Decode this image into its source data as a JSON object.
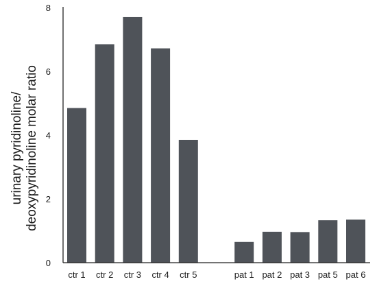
{
  "chart_data": {
    "type": "bar",
    "title": "",
    "xlabel": "",
    "ylabel_lines": [
      "urinary pyridinoline/",
      "deoxypyridinoline molar ratio"
    ],
    "ylim": [
      0,
      8
    ],
    "yticks": [
      0,
      2,
      4,
      6,
      8
    ],
    "grid": false,
    "legend": "none",
    "bar_color": "#4f5359",
    "categories": [
      "ctr 1",
      "ctr 2",
      "ctr 3",
      "ctr 4",
      "ctr 5",
      "",
      "pat 1",
      "pat 2",
      "pat 3",
      "pat 5",
      "pat 6"
    ],
    "values": [
      4.85,
      6.85,
      7.7,
      6.72,
      3.85,
      null,
      0.65,
      0.97,
      0.96,
      1.33,
      1.35
    ]
  }
}
